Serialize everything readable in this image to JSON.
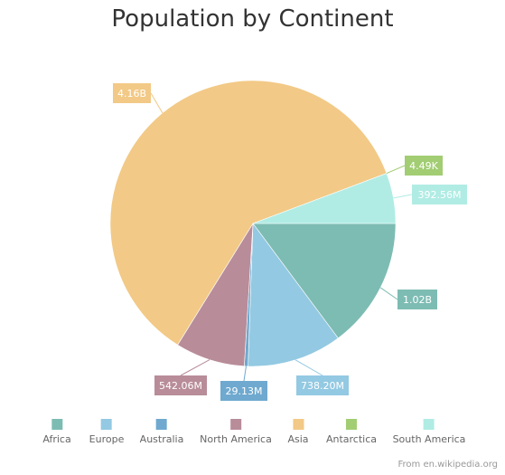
{
  "chart_data": {
    "type": "pie",
    "title": "Population by Continent",
    "categories": [
      "Africa",
      "Europe",
      "Australia",
      "North America",
      "Asia",
      "Antarctica",
      "South America"
    ],
    "values": [
      1020000000,
      738200000,
      29130000,
      542060000,
      4160000000,
      4490,
      392560000
    ],
    "labels": [
      "1.02B",
      "738.20M",
      "29.13M",
      "542.06M",
      "4.16B",
      "4.49K",
      "392.56M"
    ],
    "colors": [
      "#7dbcb3",
      "#93c9e2",
      "#6fa9cf",
      "#b88c99",
      "#f2c986",
      "#a2cd73",
      "#b0ece4"
    ],
    "legend_position": "bottom"
  },
  "credit": "From en.wikipedia.org"
}
